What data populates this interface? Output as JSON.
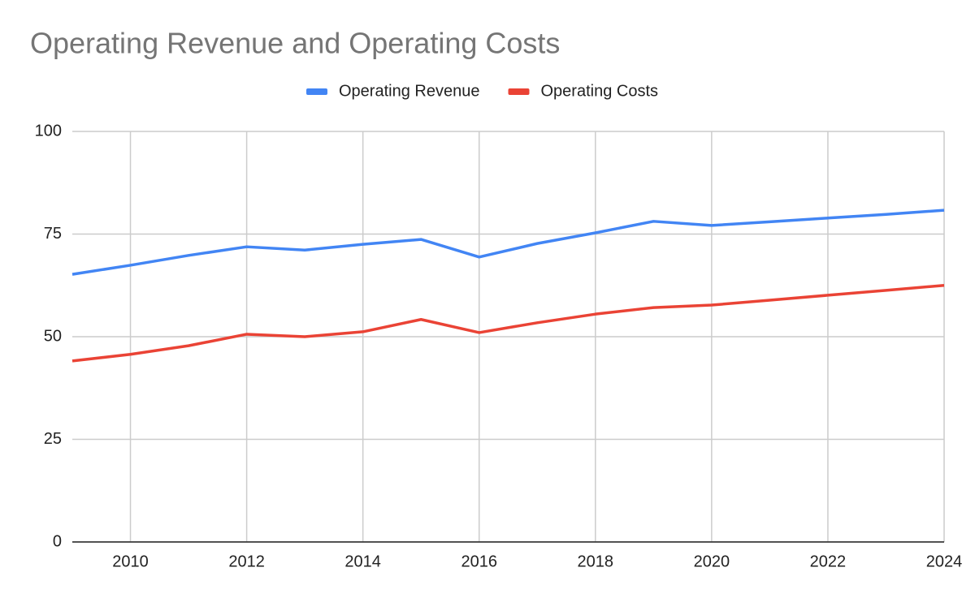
{
  "chart_data": {
    "type": "line",
    "title": "Operating Revenue and Operating Costs",
    "x": [
      2009,
      2010,
      2011,
      2012,
      2013,
      2014,
      2015,
      2016,
      2017,
      2018,
      2019,
      2020,
      2021,
      2022,
      2023,
      2024
    ],
    "series": [
      {
        "name": "Operating Revenue",
        "color": "#4285f4",
        "values": [
          65.2,
          67.4,
          69.8,
          71.9,
          71.1,
          72.5,
          73.7,
          69.4,
          72.7,
          75.3,
          78.1,
          77.1,
          78.0,
          78.9,
          79.8,
          80.8
        ]
      },
      {
        "name": "Operating Costs",
        "color": "#ea4335",
        "values": [
          44.1,
          45.7,
          47.8,
          50.6,
          50.0,
          51.2,
          54.2,
          51.0,
          53.4,
          55.5,
          57.1,
          57.7,
          58.9,
          60.1,
          61.3,
          62.5
        ]
      }
    ],
    "xlim": [
      2009,
      2024
    ],
    "xticks": [
      2010,
      2012,
      2014,
      2016,
      2018,
      2020,
      2022,
      2024
    ],
    "ylim": [
      0,
      100
    ],
    "yticks": [
      0,
      25,
      50,
      75,
      100
    ],
    "grid": true,
    "legend": "top"
  }
}
